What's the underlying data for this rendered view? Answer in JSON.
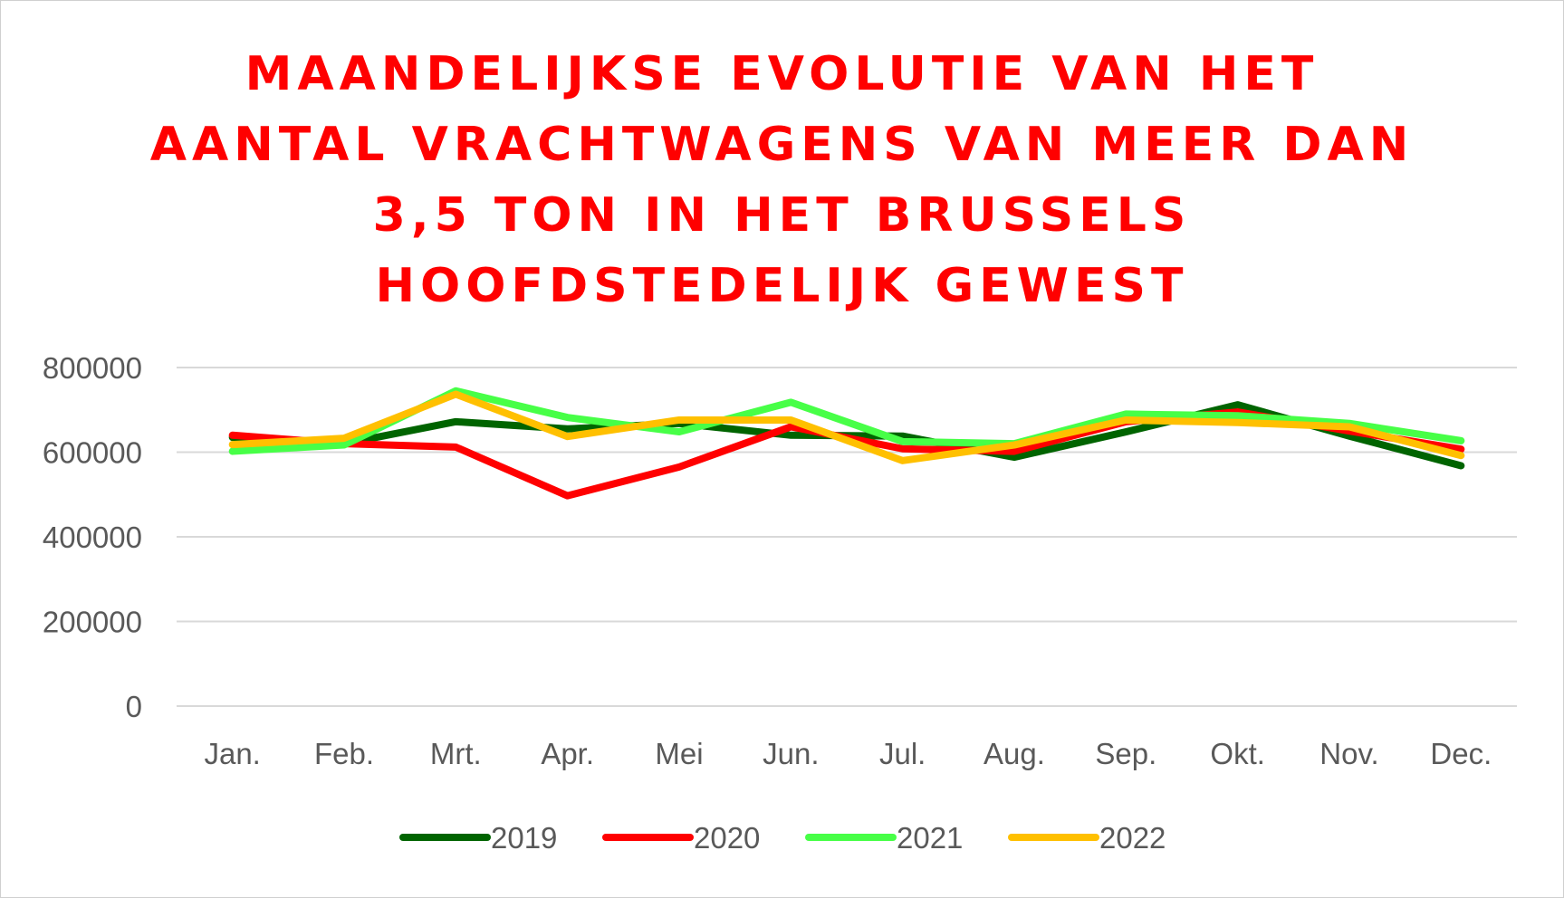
{
  "chart_data": {
    "type": "line",
    "title_lines": [
      "MAANDELIJKSE EVOLUTIE VAN HET",
      "AANTAL VRACHTWAGENS VAN MEER DAN",
      "3,5 TON IN HET BRUSSELS",
      "HOOFDSTEDELIJK GEWEST"
    ],
    "title_color": "#ff0000",
    "xlabel": "",
    "ylabel": "",
    "categories": [
      "Jan.",
      "Feb.",
      "Mrt.",
      "Apr.",
      "Mei",
      "Jun.",
      "Jul.",
      "Aug.",
      "Sep.",
      "Okt.",
      "Nov.",
      "Dec."
    ],
    "ylim": [
      0,
      800000
    ],
    "yticks": [
      "0",
      "200000",
      "400000",
      "600000",
      "800000"
    ],
    "grid": true,
    "legend": "bottom",
    "series": [
      {
        "name": "2019",
        "color": "#006400",
        "values": [
          635000,
          620000,
          672000,
          655000,
          668000,
          640000,
          638000,
          588000,
          648000,
          712000,
          638000,
          568000
        ]
      },
      {
        "name": "2020",
        "color": "#ff0000",
        "values": [
          640000,
          620000,
          612000,
          497000,
          565000,
          660000,
          608000,
          602000,
          672000,
          695000,
          650000,
          607000
        ]
      },
      {
        "name": "2021",
        "color": "#47ff47",
        "values": [
          602000,
          617000,
          745000,
          682000,
          648000,
          718000,
          625000,
          620000,
          690000,
          686000,
          668000,
          627000
        ]
      },
      {
        "name": "2022",
        "color": "#ffc000",
        "values": [
          618000,
          633000,
          737000,
          637000,
          676000,
          676000,
          580000,
          617000,
          676000,
          670000,
          660000,
          592000
        ]
      }
    ]
  }
}
